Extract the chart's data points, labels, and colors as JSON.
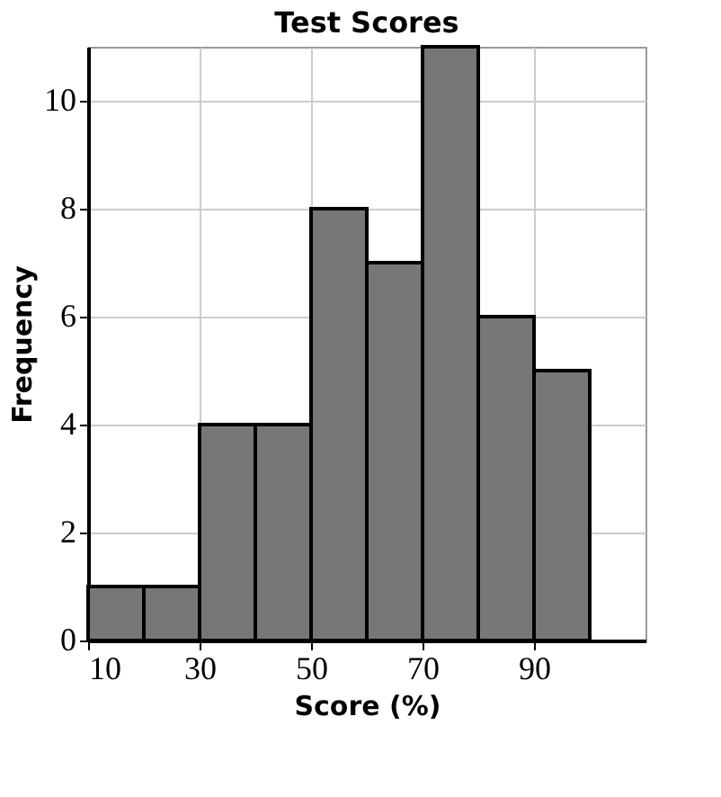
{
  "chart_data": {
    "type": "histogram",
    "title": "Test Scores",
    "xlabel": "Score (%)",
    "ylabel": "Frequency",
    "bins": [
      10,
      20,
      30,
      40,
      50,
      60,
      70,
      80,
      90,
      100
    ],
    "values": [
      1,
      1,
      4,
      4,
      8,
      7,
      11,
      6,
      5
    ],
    "color": "#777777",
    "xlim": [
      10,
      110
    ],
    "xticks": [
      10,
      30,
      50,
      70,
      90
    ],
    "ylim": [
      0,
      11
    ],
    "yticks": [
      0,
      2,
      4,
      6,
      8,
      10
    ],
    "grid": true
  }
}
